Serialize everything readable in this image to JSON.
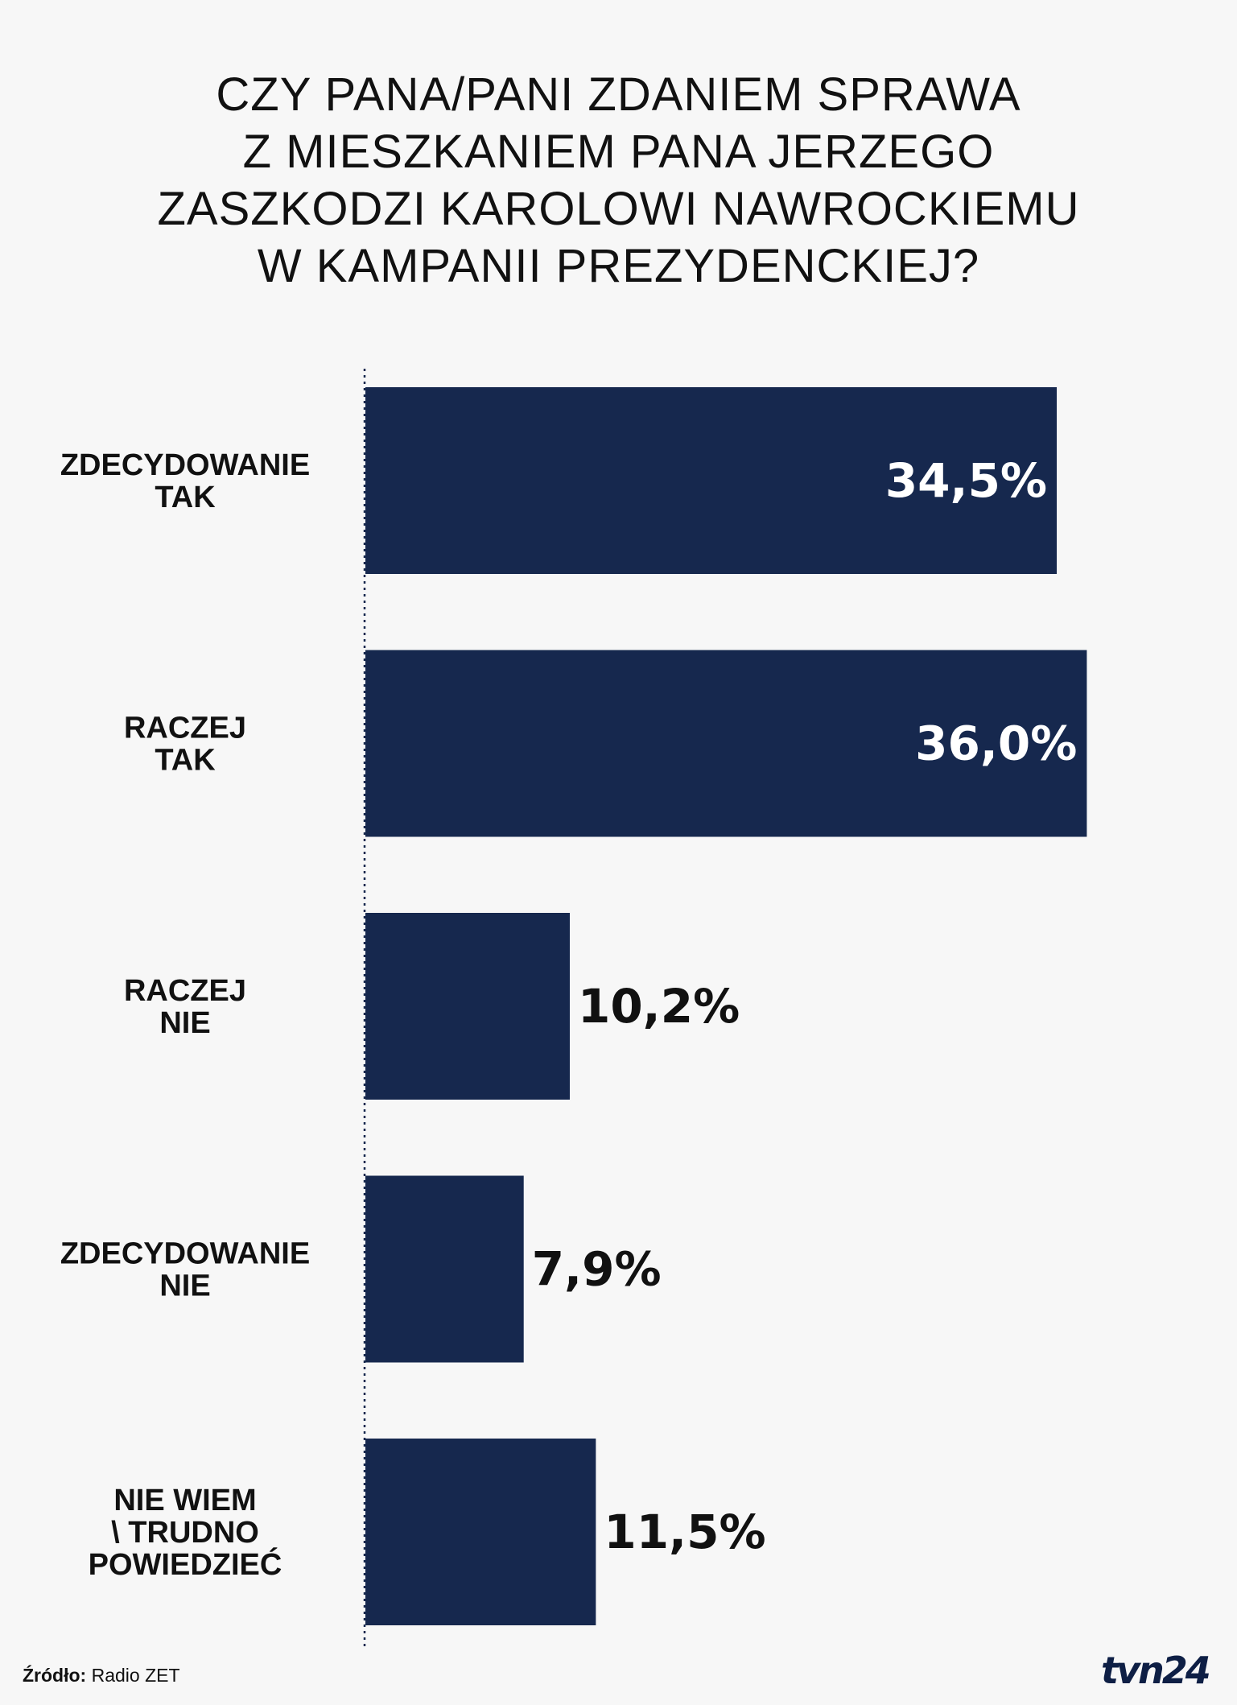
{
  "title_lines": [
    "CZY PANA/PANI ZDANIEM SPRAWA",
    "Z MIESZKANIEM PANA JERZEGO",
    "ZASZKODZI KAROLOWI NAWROCKIEMU",
    "W KAMPANII PREZYDENCKIEJ?"
  ],
  "source": {
    "label": "Źródło:",
    "value": "Radio ZET"
  },
  "logo": {
    "text": "tvn24"
  },
  "colors": {
    "bar": "#16284e",
    "label_inside": "#ffffff",
    "label_outside": "#111111",
    "background": "#f7f7f7"
  },
  "chart_data": {
    "type": "bar",
    "orientation": "horizontal",
    "categories": [
      [
        "ZDECYDOWANIE",
        "TAK"
      ],
      [
        "RACZEJ",
        "TAK"
      ],
      [
        "RACZEJ",
        "NIE"
      ],
      [
        "ZDECYDOWANIE",
        "NIE"
      ],
      [
        "NIE WIEM",
        "\\ TRUDNO",
        "POWIEDZIEĆ"
      ]
    ],
    "values": [
      34.5,
      36.0,
      10.2,
      7.9,
      11.5
    ],
    "value_labels": [
      "34,5%",
      "36,0%",
      "10,2%",
      "7,9%",
      "11,5%"
    ],
    "unit": "%",
    "grid": false,
    "legend": "none"
  }
}
